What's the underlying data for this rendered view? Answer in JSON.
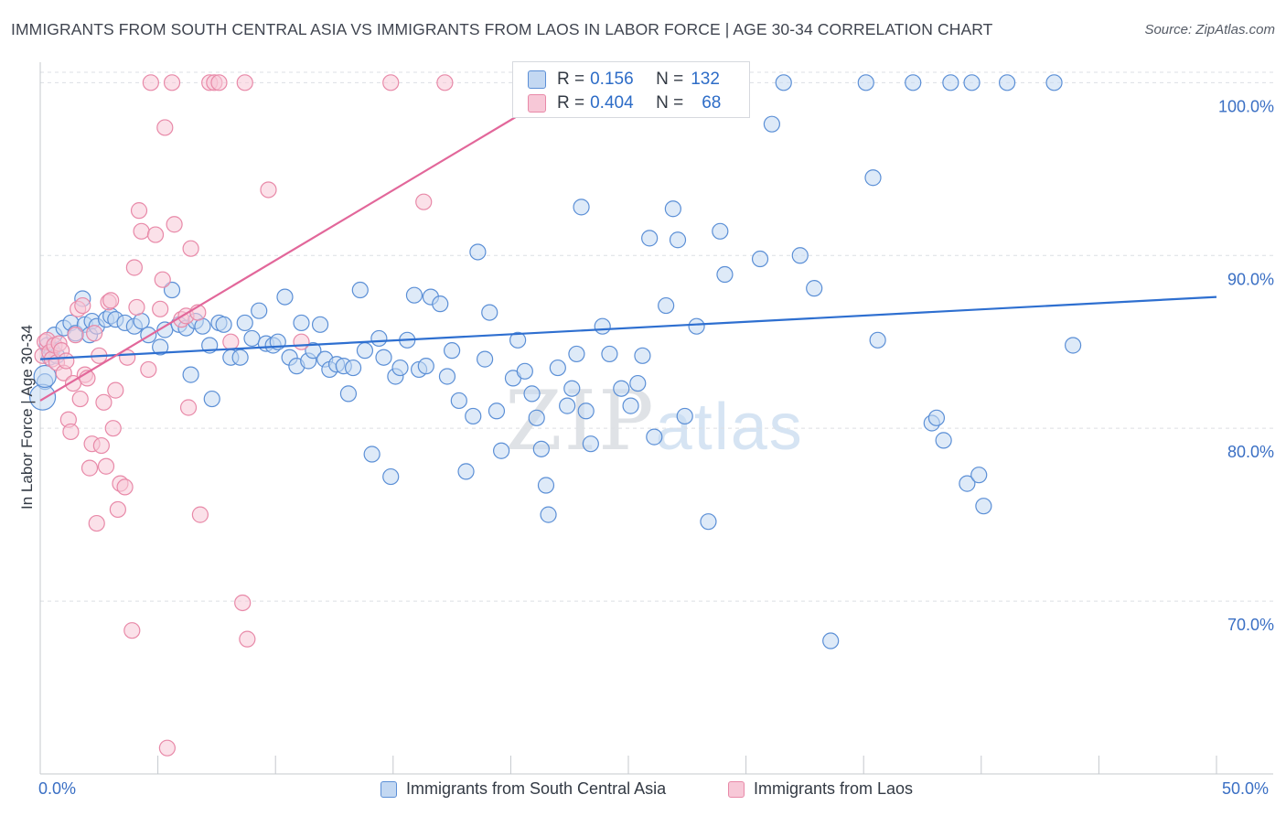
{
  "header": {
    "title": "IMMIGRANTS FROM SOUTH CENTRAL ASIA VS IMMIGRANTS FROM LAOS IN LABOR FORCE | AGE 30-34 CORRELATION CHART",
    "source": "Source: ZipAtlas.com"
  },
  "watermark": {
    "zip": "ZIP",
    "atlas": "atlas"
  },
  "stats": {
    "row1": {
      "r_label": "R = ",
      "r_value": "0.156",
      "n_label": "N = ",
      "n_value": "132"
    },
    "row2": {
      "r_label": "R = ",
      "r_value": "0.404",
      "n_label": "N = ",
      "n_value": "68"
    }
  },
  "x_axis": {
    "min_label": "0.0%",
    "max_label": "50.0%"
  },
  "legend": {
    "item1": "Immigrants from South Central Asia",
    "item2": "Immigrants from Laos"
  },
  "colors": {
    "blue": "#5b8fd6",
    "blue_fill": "#c3d8f2",
    "blue_line": "#2e6fd0",
    "pink": "#e889a8",
    "pink_fill": "#f7c8d7",
    "pink_line": "#e2679a",
    "grid": "#dcdfe4",
    "tick_text": "#3a6fc4"
  },
  "chart_data": {
    "type": "scatter",
    "title": "IMMIGRANTS FROM SOUTH CENTRAL ASIA VS IMMIGRANTS FROM LAOS IN LABOR FORCE | AGE 30-34 CORRELATION CHART",
    "xlabel": "",
    "ylabel": "In Labor Force | Age 30-34",
    "xlim": [
      0,
      50
    ],
    "ylim": [
      60,
      101.5
    ],
    "y_ticks": [
      {
        "value": 70,
        "label": "70.0%"
      },
      {
        "value": 80,
        "label": "80.0%"
      },
      {
        "value": 90,
        "label": "90.0%"
      },
      {
        "value": 100,
        "label": "100.0%"
      }
    ],
    "x_ticks": [
      0,
      5,
      10,
      15,
      20,
      25,
      30,
      35,
      40,
      45,
      50
    ],
    "grid": true,
    "legend_position": "bottom",
    "series": [
      {
        "name": "Immigrants from South Central Asia",
        "color": "#5b8fd6",
        "trend": {
          "x": [
            0,
            50
          ],
          "y": [
            84.0,
            87.6
          ]
        },
        "points": [
          [
            0.2,
            82.7
          ],
          [
            0.3,
            84.8
          ],
          [
            0.4,
            84.1
          ],
          [
            0.5,
            84.5
          ],
          [
            0.6,
            85.4
          ],
          [
            0.7,
            84.2
          ],
          [
            1.0,
            85.8
          ],
          [
            1.3,
            86.1
          ],
          [
            1.5,
            85.5
          ],
          [
            1.8,
            87.5
          ],
          [
            1.9,
            86.0
          ],
          [
            2.1,
            85.4
          ],
          [
            2.2,
            86.2
          ],
          [
            2.4,
            85.9
          ],
          [
            2.8,
            86.3
          ],
          [
            3.0,
            86.5
          ],
          [
            3.2,
            86.3
          ],
          [
            3.6,
            86.1
          ],
          [
            4.0,
            85.9
          ],
          [
            4.3,
            86.2
          ],
          [
            4.6,
            85.4
          ],
          [
            5.1,
            84.7
          ],
          [
            5.3,
            85.7
          ],
          [
            5.6,
            88.0
          ],
          [
            5.9,
            86.0
          ],
          [
            6.2,
            85.8
          ],
          [
            6.4,
            83.1
          ],
          [
            6.6,
            86.2
          ],
          [
            6.9,
            85.9
          ],
          [
            7.2,
            84.8
          ],
          [
            7.3,
            81.7
          ],
          [
            7.6,
            86.1
          ],
          [
            7.8,
            86.0
          ],
          [
            8.1,
            84.1
          ],
          [
            8.5,
            84.1
          ],
          [
            8.7,
            86.1
          ],
          [
            9.0,
            85.2
          ],
          [
            9.3,
            86.8
          ],
          [
            9.6,
            84.9
          ],
          [
            9.9,
            84.8
          ],
          [
            10.1,
            85.0
          ],
          [
            10.4,
            87.6
          ],
          [
            10.6,
            84.1
          ],
          [
            10.9,
            83.6
          ],
          [
            11.1,
            86.1
          ],
          [
            11.4,
            83.9
          ],
          [
            11.6,
            84.5
          ],
          [
            11.9,
            86.0
          ],
          [
            12.1,
            84.0
          ],
          [
            12.3,
            83.4
          ],
          [
            12.6,
            83.7
          ],
          [
            12.9,
            83.6
          ],
          [
            13.1,
            82.0
          ],
          [
            13.3,
            83.5
          ],
          [
            13.6,
            88.0
          ],
          [
            13.8,
            84.5
          ],
          [
            14.1,
            78.5
          ],
          [
            14.4,
            85.2
          ],
          [
            14.6,
            84.1
          ],
          [
            14.9,
            77.2
          ],
          [
            15.1,
            83.0
          ],
          [
            15.3,
            83.5
          ],
          [
            15.6,
            85.1
          ],
          [
            15.9,
            87.7
          ],
          [
            16.1,
            83.4
          ],
          [
            16.4,
            83.6
          ],
          [
            16.6,
            87.6
          ],
          [
            17.0,
            87.2
          ],
          [
            17.3,
            83.0
          ],
          [
            17.5,
            84.5
          ],
          [
            17.8,
            81.6
          ],
          [
            18.1,
            77.5
          ],
          [
            18.4,
            80.7
          ],
          [
            18.6,
            90.2
          ],
          [
            18.9,
            84.0
          ],
          [
            19.1,
            86.7
          ],
          [
            19.4,
            81.0
          ],
          [
            19.6,
            78.7
          ],
          [
            20.1,
            82.9
          ],
          [
            20.3,
            85.1
          ],
          [
            20.6,
            83.3
          ],
          [
            20.9,
            82.0
          ],
          [
            21.1,
            80.6
          ],
          [
            21.3,
            78.8
          ],
          [
            21.5,
            76.7
          ],
          [
            21.6,
            75.0
          ],
          [
            22.0,
            83.5
          ],
          [
            22.4,
            81.3
          ],
          [
            22.6,
            82.3
          ],
          [
            22.8,
            84.3
          ],
          [
            23.0,
            92.8
          ],
          [
            23.2,
            81.0
          ],
          [
            23.4,
            79.1
          ],
          [
            23.9,
            85.9
          ],
          [
            24.2,
            84.3
          ],
          [
            24.7,
            82.3
          ],
          [
            25.1,
            81.3
          ],
          [
            25.4,
            82.6
          ],
          [
            25.6,
            84.2
          ],
          [
            25.9,
            91.0
          ],
          [
            26.1,
            79.5
          ],
          [
            26.6,
            87.1
          ],
          [
            26.9,
            92.7
          ],
          [
            27.1,
            90.9
          ],
          [
            27.4,
            80.7
          ],
          [
            27.9,
            85.9
          ],
          [
            28.4,
            74.6
          ],
          [
            28.9,
            91.4
          ],
          [
            29.1,
            88.9
          ],
          [
            30.6,
            89.8
          ],
          [
            31.1,
            97.6
          ],
          [
            31.6,
            100.0
          ],
          [
            32.3,
            90.0
          ],
          [
            32.9,
            88.1
          ],
          [
            33.6,
            67.7
          ],
          [
            35.1,
            100.0
          ],
          [
            35.4,
            94.5
          ],
          [
            35.6,
            85.1
          ],
          [
            37.1,
            100.0
          ],
          [
            37.9,
            80.3
          ],
          [
            38.1,
            80.6
          ],
          [
            38.4,
            79.3
          ],
          [
            38.7,
            100.0
          ],
          [
            39.4,
            76.8
          ],
          [
            39.6,
            100.0
          ],
          [
            39.9,
            77.3
          ],
          [
            40.1,
            75.5
          ],
          [
            41.1,
            100.0
          ],
          [
            43.1,
            100.0
          ],
          [
            43.9,
            84.8
          ],
          [
            20.5,
            100.0
          ],
          [
            22.3,
            100.0
          ]
        ]
      },
      {
        "name": "Immigrants from Laos",
        "color": "#e889a8",
        "trend": {
          "x": [
            0,
            20.2
          ],
          "y": [
            81.6,
            98.0
          ]
        },
        "points": [
          [
            0.1,
            84.2
          ],
          [
            0.2,
            85.0
          ],
          [
            0.3,
            85.1
          ],
          [
            0.4,
            84.4
          ],
          [
            0.5,
            84.0
          ],
          [
            0.6,
            84.8
          ],
          [
            0.7,
            83.8
          ],
          [
            0.8,
            84.9
          ],
          [
            0.9,
            84.5
          ],
          [
            1.0,
            83.2
          ],
          [
            1.1,
            83.9
          ],
          [
            1.2,
            80.5
          ],
          [
            1.3,
            79.8
          ],
          [
            1.4,
            82.6
          ],
          [
            1.5,
            85.4
          ],
          [
            1.6,
            86.9
          ],
          [
            1.7,
            81.7
          ],
          [
            1.8,
            87.1
          ],
          [
            1.9,
            83.1
          ],
          [
            2.0,
            82.9
          ],
          [
            2.1,
            77.7
          ],
          [
            2.2,
            79.1
          ],
          [
            2.3,
            85.5
          ],
          [
            2.4,
            74.5
          ],
          [
            2.5,
            84.2
          ],
          [
            2.6,
            79.0
          ],
          [
            2.7,
            81.5
          ],
          [
            2.8,
            77.8
          ],
          [
            2.9,
            87.3
          ],
          [
            3.0,
            87.4
          ],
          [
            3.1,
            80.0
          ],
          [
            3.2,
            82.2
          ],
          [
            3.3,
            75.3
          ],
          [
            3.4,
            76.8
          ],
          [
            3.6,
            76.6
          ],
          [
            3.7,
            84.1
          ],
          [
            3.9,
            68.3
          ],
          [
            4.0,
            89.3
          ],
          [
            4.1,
            87.0
          ],
          [
            4.2,
            92.6
          ],
          [
            4.3,
            91.4
          ],
          [
            4.6,
            83.4
          ],
          [
            4.7,
            100.0
          ],
          [
            4.9,
            91.2
          ],
          [
            5.1,
            86.9
          ],
          [
            5.2,
            88.6
          ],
          [
            5.3,
            97.4
          ],
          [
            5.4,
            61.5
          ],
          [
            5.6,
            100.0
          ],
          [
            5.7,
            91.8
          ],
          [
            6.0,
            86.3
          ],
          [
            6.2,
            86.5
          ],
          [
            6.3,
            81.2
          ],
          [
            6.4,
            90.4
          ],
          [
            6.7,
            86.7
          ],
          [
            6.8,
            75.0
          ],
          [
            7.2,
            100.0
          ],
          [
            7.4,
            100.0
          ],
          [
            7.6,
            100.0
          ],
          [
            8.1,
            85.0
          ],
          [
            8.6,
            69.9
          ],
          [
            8.7,
            100.0
          ],
          [
            8.8,
            67.8
          ],
          [
            9.7,
            93.8
          ],
          [
            11.1,
            85.0
          ],
          [
            14.9,
            100.0
          ],
          [
            16.3,
            93.1
          ],
          [
            17.2,
            100.0
          ]
        ]
      }
    ]
  }
}
